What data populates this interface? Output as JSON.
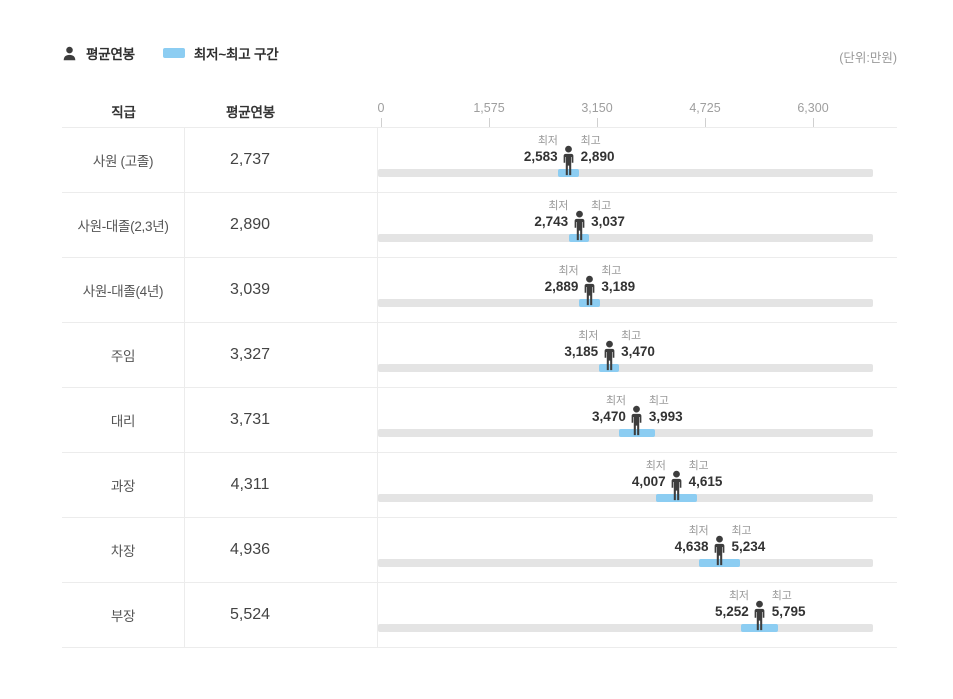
{
  "legend": {
    "avg_label": "평균연봉",
    "range_label": "최저~최고 구간"
  },
  "unit_note": "(단위:만원)",
  "table": {
    "col_position": "직급",
    "col_avg": "평균연봉"
  },
  "axis": {
    "tick_labels": [
      "0",
      "1,575",
      "3,150",
      "4,725",
      "6,300"
    ],
    "tick_values": [
      0,
      1575,
      3150,
      4725,
      6300
    ],
    "max": 6300
  },
  "labels": {
    "min": "최저",
    "max": "최고"
  },
  "colors": {
    "range_blue": "#8ccdf2",
    "track_gray": "#e4e4e4",
    "person_dark": "#3d3d3d"
  },
  "rows": [
    {
      "position": "사원 (고졸)",
      "avg_text": "2,737",
      "min_text": "2,583",
      "max_text": "2,890",
      "avg": 2737,
      "min": 2583,
      "max": 2890
    },
    {
      "position": "사원-대졸(2,3년)",
      "avg_text": "2,890",
      "min_text": "2,743",
      "max_text": "3,037",
      "avg": 2890,
      "min": 2743,
      "max": 3037
    },
    {
      "position": "사원-대졸(4년)",
      "avg_text": "3,039",
      "min_text": "2,889",
      "max_text": "3,189",
      "avg": 3039,
      "min": 2889,
      "max": 3189
    },
    {
      "position": "주임",
      "avg_text": "3,327",
      "min_text": "3,185",
      "max_text": "3,470",
      "avg": 3327,
      "min": 3185,
      "max": 3470
    },
    {
      "position": "대리",
      "avg_text": "3,731",
      "min_text": "3,470",
      "max_text": "3,993",
      "avg": 3731,
      "min": 3470,
      "max": 3993
    },
    {
      "position": "과장",
      "avg_text": "4,311",
      "min_text": "4,007",
      "max_text": "4,615",
      "avg": 4311,
      "min": 4007,
      "max": 4615
    },
    {
      "position": "차장",
      "avg_text": "4,936",
      "min_text": "4,638",
      "max_text": "5,234",
      "avg": 4936,
      "min": 4638,
      "max": 5234
    },
    {
      "position": "부장",
      "avg_text": "5,524",
      "min_text": "5,252",
      "max_text": "5,795",
      "avg": 5524,
      "min": 5252,
      "max": 5795
    }
  ],
  "chart_data": {
    "type": "bar",
    "variant": "horizontal_range_with_marker",
    "categories": [
      "사원 (고졸)",
      "사원-대졸(2,3년)",
      "사원-대졸(4년)",
      "주임",
      "대리",
      "과장",
      "차장",
      "부장"
    ],
    "series": [
      {
        "name": "평균연봉",
        "values": [
          2737,
          2890,
          3039,
          3327,
          3731,
          4311,
          4936,
          5524
        ]
      },
      {
        "name": "최저",
        "values": [
          2583,
          2743,
          2889,
          3185,
          3470,
          4007,
          4638,
          5252
        ]
      },
      {
        "name": "최고",
        "values": [
          2890,
          3037,
          3189,
          3470,
          3993,
          4615,
          5234,
          5795
        ]
      }
    ],
    "xlabel": "",
    "ylabel": "직급",
    "xlim": [
      0,
      6300
    ],
    "x_ticks": [
      0,
      1575,
      3150,
      4725,
      6300
    ],
    "unit": "만원",
    "legend_entries": [
      "평균연봉",
      "최저~최고 구간"
    ],
    "legend_position": "top-left",
    "grid": false
  }
}
